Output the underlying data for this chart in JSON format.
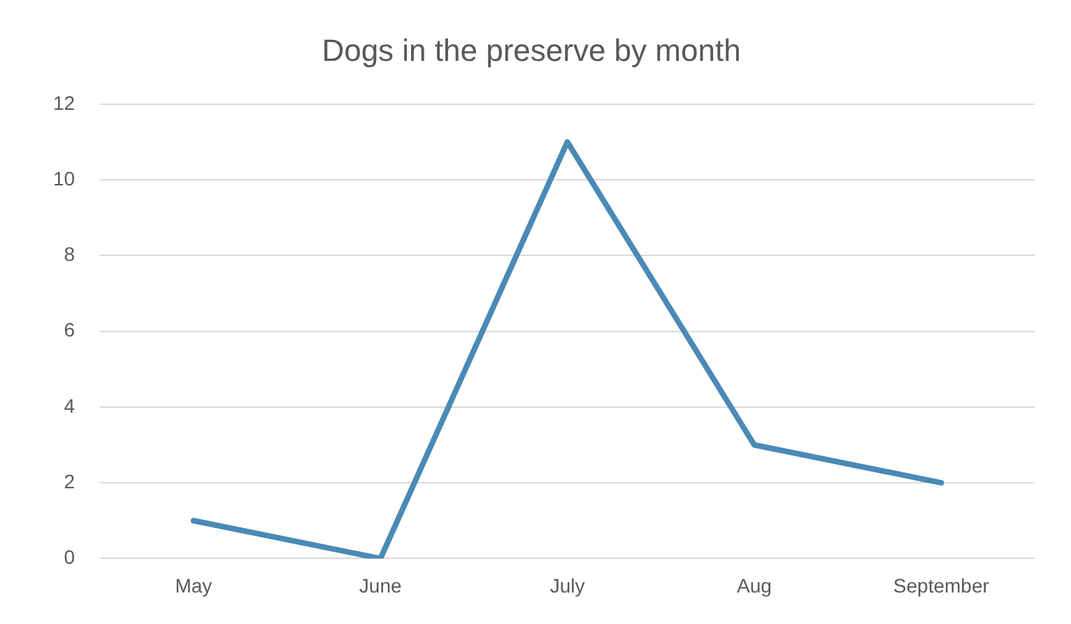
{
  "chart_data": {
    "type": "line",
    "title": "Dogs in the preserve by month",
    "categories": [
      "May",
      "June",
      "July",
      "Aug",
      "September"
    ],
    "series": [
      {
        "color": "#4a8ab5",
        "values": [
          1,
          0,
          11,
          3,
          2
        ]
      }
    ],
    "ylim": [
      0,
      12
    ],
    "yticks": [
      0,
      2,
      4,
      6,
      8,
      10,
      12
    ],
    "grid": "y",
    "legend": false,
    "marker": "none",
    "line_style": "solid"
  }
}
